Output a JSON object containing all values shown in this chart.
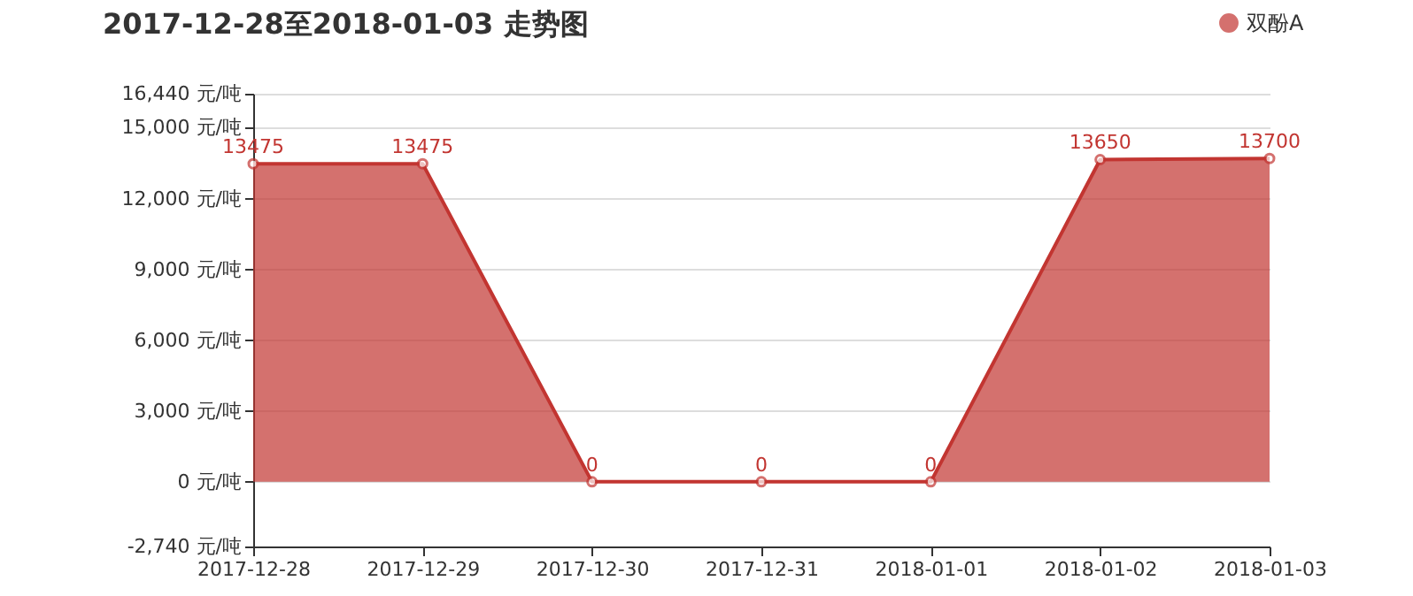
{
  "chart_data": {
    "type": "area",
    "title": "2017-12-28至2018-01-03 走势图",
    "categories": [
      "2017-12-28",
      "2017-12-29",
      "2017-12-30",
      "2017-12-31",
      "2018-01-01",
      "2018-01-02",
      "2018-01-03"
    ],
    "series": [
      {
        "name": "双酚A",
        "color": "#c23531",
        "values": [
          13475,
          13475,
          0,
          0,
          0,
          13650,
          13700
        ]
      }
    ],
    "ylim": [
      -2740,
      16440
    ],
    "yticks": [
      {
        "value": -2740,
        "label": "-2,740 元/吨"
      },
      {
        "value": 0,
        "label": "0 元/吨"
      },
      {
        "value": 3000,
        "label": "3,000 元/吨"
      },
      {
        "value": 6000,
        "label": "6,000 元/吨"
      },
      {
        "value": 9000,
        "label": "9,000 元/吨"
      },
      {
        "value": 12000,
        "label": "12,000 元/吨"
      },
      {
        "value": 15000,
        "label": "15,000 元/吨"
      },
      {
        "value": 16440,
        "label": "16,440 元/吨"
      }
    ],
    "grid": "y",
    "legend": "top right",
    "marker": "circle",
    "data_labels": true
  }
}
